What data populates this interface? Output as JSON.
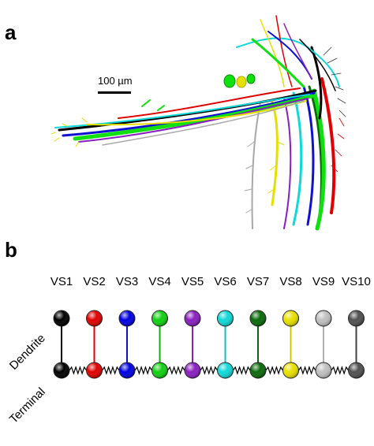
{
  "panel_a": {
    "letter": "a",
    "scale_bar_label": "100 µm"
  },
  "panel_b": {
    "letter": "b",
    "dendrite_label": "Dendrite",
    "terminal_label": "Terminal",
    "neurons": [
      {
        "label": "VS1",
        "color": "#000000",
        "stem": "#000000"
      },
      {
        "label": "VS2",
        "color": "#e00000",
        "stem": "#e00000"
      },
      {
        "label": "VS3",
        "color": "#0000e0",
        "stem": "#1010c0"
      },
      {
        "label": "VS4",
        "color": "#10d010",
        "stem": "#10b010"
      },
      {
        "label": "VS5",
        "color": "#8a1fc0",
        "stem": "#8a1fc0"
      },
      {
        "label": "VS6",
        "color": "#10d8d8",
        "stem": "#10c0c0"
      },
      {
        "label": "VS7",
        "color": "#0a6a0a",
        "stem": "#0a6a0a"
      },
      {
        "label": "VS8",
        "color": "#e8e000",
        "stem": "#d0c800"
      },
      {
        "label": "VS9",
        "color": "#c0c0c0",
        "stem": "#b0b0b0"
      },
      {
        "label": "VS10",
        "color": "#505050",
        "stem": "#404040"
      }
    ]
  }
}
